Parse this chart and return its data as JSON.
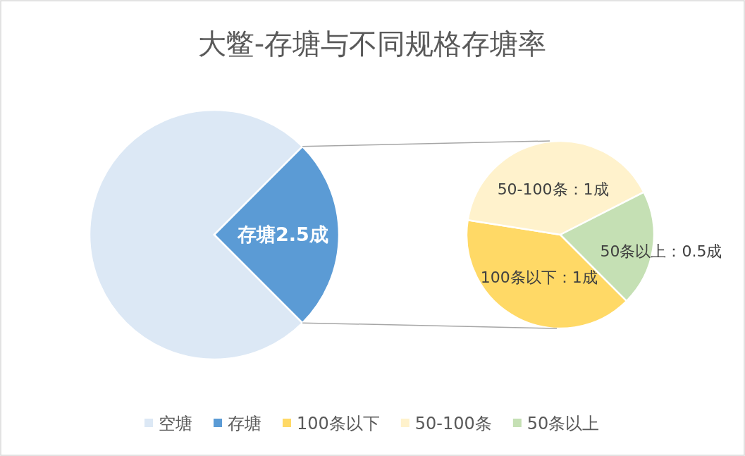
{
  "chart_data": [
    {
      "type": "pie",
      "title": "大鳖-存塘与不同规格存塘率",
      "categories": [
        "空塘",
        "存塘"
      ],
      "values": [
        7.5,
        2.5
      ],
      "colors": [
        "#dce8f5",
        "#5b9bd5"
      ],
      "value_labels": [
        null,
        "存塘2.5成"
      ],
      "legend": "bottom"
    },
    {
      "type": "pie",
      "categories": [
        "100条以下",
        "50-100条",
        "50条以上"
      ],
      "values": [
        1,
        1,
        0.5
      ],
      "colors": [
        "#ffd966",
        "#fff2cc",
        "#c5e0b4"
      ],
      "value_labels": [
        "100条以下：1成",
        "50-100条：1成",
        "50条以上：0.5成"
      ],
      "legend": "bottom"
    }
  ]
}
